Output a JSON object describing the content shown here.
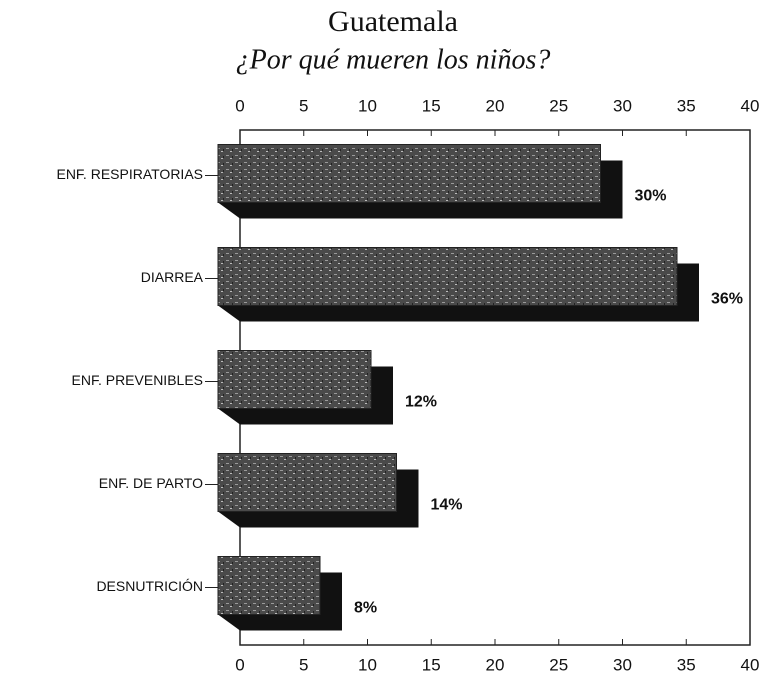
{
  "chart_data": {
    "type": "bar",
    "orientation": "horizontal",
    "title": "Guatemala",
    "subtitle": "¿Por qué mueren los niños?",
    "categories": [
      "ENF. RESPIRATORIAS",
      "DIARREA",
      "ENF. PREVENIBLES",
      "ENF. DE PARTO",
      "DESNUTRICIÓN"
    ],
    "values": [
      30,
      36,
      12,
      14,
      8
    ],
    "value_labels": [
      "30%",
      "36%",
      "12%",
      "14%",
      "8%"
    ],
    "color": "#4a4a4a",
    "xlim": [
      0,
      40
    ],
    "xticks": [
      0,
      5,
      10,
      15,
      20,
      25,
      30,
      35,
      40
    ]
  }
}
